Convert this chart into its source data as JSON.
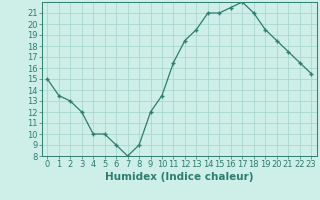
{
  "x": [
    0,
    1,
    2,
    3,
    4,
    5,
    6,
    7,
    8,
    9,
    10,
    11,
    12,
    13,
    14,
    15,
    16,
    17,
    18,
    19,
    20,
    21,
    22,
    23
  ],
  "y": [
    15,
    13.5,
    13,
    12,
    10,
    10,
    9,
    8,
    9,
    12,
    13.5,
    16.5,
    18.5,
    19.5,
    21,
    21,
    21.5,
    22,
    21,
    19.5,
    18.5,
    17.5,
    16.5,
    15.5
  ],
  "line_color": "#2d7d70",
  "marker": "+",
  "bg_color": "#ceeee8",
  "grid_color": "#aad8d0",
  "xlabel": "Humidex (Indice chaleur)",
  "ylim": [
    8,
    22
  ],
  "xlim": [
    -0.5,
    23.5
  ],
  "yticks": [
    8,
    9,
    10,
    11,
    12,
    13,
    14,
    15,
    16,
    17,
    18,
    19,
    20,
    21
  ],
  "xticks": [
    0,
    1,
    2,
    3,
    4,
    5,
    6,
    7,
    8,
    9,
    10,
    11,
    12,
    13,
    14,
    15,
    16,
    17,
    18,
    19,
    20,
    21,
    22,
    23
  ],
  "tick_color": "#2d7d70",
  "label_fontsize": 6,
  "xlabel_fontsize": 7.5
}
